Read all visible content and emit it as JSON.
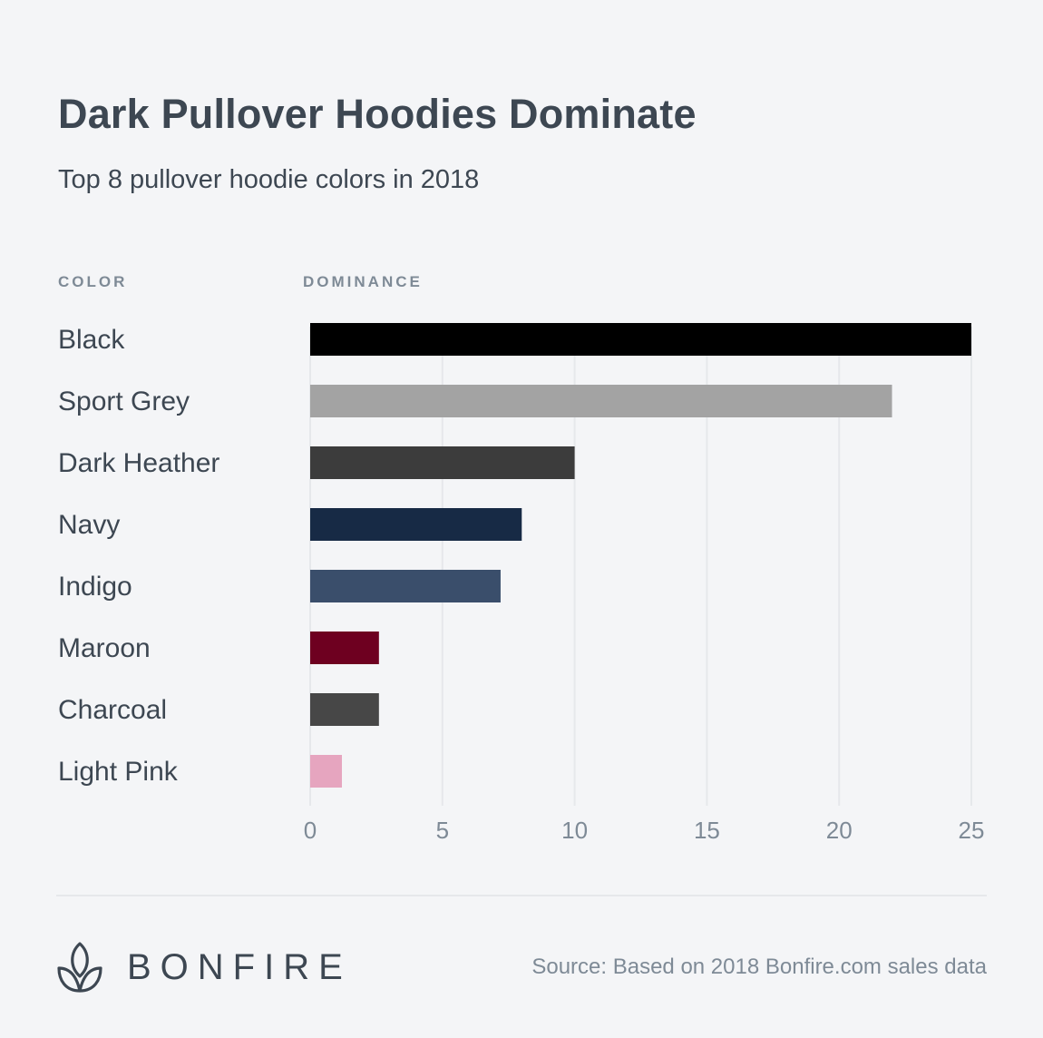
{
  "header": {
    "title": "Dark Pullover Hoodies Dominate",
    "subtitle": "Top 8 pullover hoodie colors in 2018"
  },
  "columns": {
    "color": "COLOR",
    "dominance": "DOMINANCE"
  },
  "chart_data": {
    "type": "bar",
    "orientation": "horizontal",
    "categories": [
      "Black",
      "Sport Grey",
      "Dark Heather",
      "Navy",
      "Indigo",
      "Maroon",
      "Charcoal",
      "Light Pink"
    ],
    "values": [
      25,
      22,
      10,
      8,
      7.2,
      2.6,
      2.6,
      1.2
    ],
    "bar_colors": [
      "#000000",
      "#a3a3a3",
      "#3c3c3c",
      "#172a45",
      "#3a4e6b",
      "#6e0020",
      "#474747",
      "#e6a5bf"
    ],
    "xticks": [
      "0",
      "5",
      "10",
      "15",
      "20",
      "25"
    ],
    "xlim": [
      0,
      25
    ],
    "grid": true,
    "xlabel": "",
    "ylabel": ""
  },
  "footer": {
    "brand": "BONFIRE",
    "source": "Source: Based on 2018 Bonfire.com sales data"
  }
}
